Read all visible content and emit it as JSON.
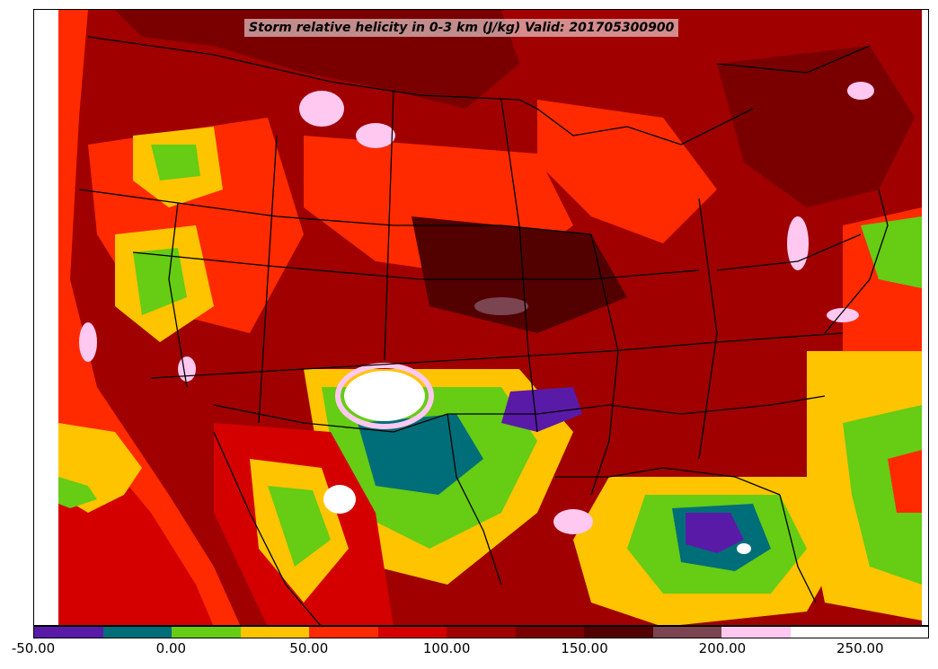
{
  "title": "Storm relative helicity in 0-3 km (J/kg) Valid: 201705300900",
  "colorbar": {
    "min": -50,
    "max": 275,
    "step": 25,
    "colors": [
      "#5a1aa8",
      "#006e78",
      "#66cc14",
      "#ffc400",
      "#ff2a00",
      "#d40000",
      "#a00000",
      "#7a0000",
      "#520000",
      "#7a4450",
      "#ffc8f0",
      "#ffffff",
      "#ffffff"
    ],
    "tick_values": [
      -50,
      0,
      50,
      100,
      150,
      200,
      250
    ],
    "tick_labels": [
      "-50.00",
      "0.00",
      "50.00",
      "100.00",
      "150.00",
      "200.00",
      "250.00"
    ]
  },
  "map_colors": {
    "background": "#a00000",
    "ocean_west": "#d40000",
    "borders": "#000000"
  }
}
